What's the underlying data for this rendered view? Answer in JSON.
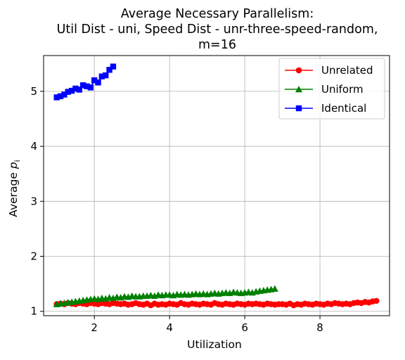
{
  "chart_data": {
    "type": "line",
    "title_lines": [
      "Average Necessary Parallelism:",
      "Util Dist - uni, Speed Dist - unr-three-speed-random,",
      "m=16"
    ],
    "xlabel": "Utilization",
    "ylabel_main": "Average ",
    "ylabel_var": "p",
    "ylabel_sub": "i",
    "xlim": [
      0.65,
      9.85
    ],
    "ylim": [
      0.92,
      5.65
    ],
    "xticks": [
      2,
      4,
      6,
      8
    ],
    "yticks": [
      1,
      2,
      3,
      4,
      5
    ],
    "grid": true,
    "legend_position": "top-right",
    "series": [
      {
        "name": "Unrelated",
        "color": "#ff0000",
        "marker": "circle",
        "points": [
          [
            1.0,
            1.13
          ],
          [
            1.1,
            1.14
          ],
          [
            1.2,
            1.13
          ],
          [
            1.3,
            1.15
          ],
          [
            1.4,
            1.14
          ],
          [
            1.5,
            1.13
          ],
          [
            1.6,
            1.15
          ],
          [
            1.7,
            1.14
          ],
          [
            1.8,
            1.13
          ],
          [
            1.9,
            1.15
          ],
          [
            2.0,
            1.14
          ],
          [
            2.1,
            1.13
          ],
          [
            2.2,
            1.15
          ],
          [
            2.3,
            1.14
          ],
          [
            2.4,
            1.13
          ],
          [
            2.5,
            1.15
          ],
          [
            2.6,
            1.14
          ],
          [
            2.7,
            1.13
          ],
          [
            2.8,
            1.14
          ],
          [
            2.9,
            1.12
          ],
          [
            3.0,
            1.13
          ],
          [
            3.1,
            1.15
          ],
          [
            3.2,
            1.13
          ],
          [
            3.3,
            1.12
          ],
          [
            3.4,
            1.14
          ],
          [
            3.5,
            1.11
          ],
          [
            3.6,
            1.14
          ],
          [
            3.7,
            1.12
          ],
          [
            3.8,
            1.13
          ],
          [
            3.9,
            1.12
          ],
          [
            4.0,
            1.14
          ],
          [
            4.1,
            1.13
          ],
          [
            4.2,
            1.12
          ],
          [
            4.3,
            1.15
          ],
          [
            4.4,
            1.13
          ],
          [
            4.5,
            1.12
          ],
          [
            4.6,
            1.14
          ],
          [
            4.7,
            1.13
          ],
          [
            4.8,
            1.12
          ],
          [
            4.9,
            1.14
          ],
          [
            5.0,
            1.13
          ],
          [
            5.1,
            1.12
          ],
          [
            5.2,
            1.15
          ],
          [
            5.3,
            1.13
          ],
          [
            5.4,
            1.12
          ],
          [
            5.5,
            1.14
          ],
          [
            5.6,
            1.13
          ],
          [
            5.7,
            1.12
          ],
          [
            5.8,
            1.14
          ],
          [
            5.9,
            1.13
          ],
          [
            6.0,
            1.12
          ],
          [
            6.1,
            1.14
          ],
          [
            6.2,
            1.13
          ],
          [
            6.3,
            1.14
          ],
          [
            6.4,
            1.13
          ],
          [
            6.5,
            1.12
          ],
          [
            6.6,
            1.14
          ],
          [
            6.7,
            1.13
          ],
          [
            6.8,
            1.12
          ],
          [
            6.9,
            1.13
          ],
          [
            7.0,
            1.13
          ],
          [
            7.1,
            1.12
          ],
          [
            7.2,
            1.14
          ],
          [
            7.3,
            1.11
          ],
          [
            7.4,
            1.13
          ],
          [
            7.5,
            1.12
          ],
          [
            7.6,
            1.14
          ],
          [
            7.7,
            1.13
          ],
          [
            7.8,
            1.12
          ],
          [
            7.9,
            1.14
          ],
          [
            8.0,
            1.13
          ],
          [
            8.1,
            1.12
          ],
          [
            8.2,
            1.14
          ],
          [
            8.3,
            1.13
          ],
          [
            8.4,
            1.15
          ],
          [
            8.5,
            1.14
          ],
          [
            8.6,
            1.13
          ],
          [
            8.7,
            1.14
          ],
          [
            8.8,
            1.13
          ],
          [
            8.9,
            1.15
          ],
          [
            9.0,
            1.16
          ],
          [
            9.1,
            1.15
          ],
          [
            9.2,
            1.17
          ],
          [
            9.3,
            1.16
          ],
          [
            9.4,
            1.18
          ],
          [
            9.5,
            1.19
          ]
        ]
      },
      {
        "name": "Uniform",
        "color": "#008000",
        "marker": "triangle",
        "points": [
          [
            1.0,
            1.13
          ],
          [
            1.1,
            1.14
          ],
          [
            1.2,
            1.15
          ],
          [
            1.3,
            1.16
          ],
          [
            1.4,
            1.17
          ],
          [
            1.5,
            1.18
          ],
          [
            1.6,
            1.19
          ],
          [
            1.7,
            1.2
          ],
          [
            1.8,
            1.21
          ],
          [
            1.9,
            1.22
          ],
          [
            2.0,
            1.23
          ],
          [
            2.1,
            1.22
          ],
          [
            2.2,
            1.24
          ],
          [
            2.3,
            1.23
          ],
          [
            2.4,
            1.25
          ],
          [
            2.5,
            1.24
          ],
          [
            2.6,
            1.26
          ],
          [
            2.7,
            1.25
          ],
          [
            2.8,
            1.27
          ],
          [
            2.9,
            1.26
          ],
          [
            3.0,
            1.28
          ],
          [
            3.1,
            1.27
          ],
          [
            3.2,
            1.27
          ],
          [
            3.3,
            1.28
          ],
          [
            3.4,
            1.28
          ],
          [
            3.5,
            1.29
          ],
          [
            3.6,
            1.28
          ],
          [
            3.7,
            1.3
          ],
          [
            3.8,
            1.29
          ],
          [
            3.9,
            1.3
          ],
          [
            4.0,
            1.3
          ],
          [
            4.1,
            1.29
          ],
          [
            4.2,
            1.31
          ],
          [
            4.3,
            1.3
          ],
          [
            4.4,
            1.31
          ],
          [
            4.5,
            1.3
          ],
          [
            4.6,
            1.31
          ],
          [
            4.7,
            1.32
          ],
          [
            4.8,
            1.31
          ],
          [
            4.9,
            1.32
          ],
          [
            5.0,
            1.31
          ],
          [
            5.1,
            1.32
          ],
          [
            5.2,
            1.33
          ],
          [
            5.3,
            1.32
          ],
          [
            5.4,
            1.33
          ],
          [
            5.5,
            1.34
          ],
          [
            5.6,
            1.33
          ],
          [
            5.7,
            1.35
          ],
          [
            5.8,
            1.34
          ],
          [
            5.9,
            1.33
          ],
          [
            6.0,
            1.34
          ],
          [
            6.1,
            1.35
          ],
          [
            6.2,
            1.34
          ],
          [
            6.3,
            1.36
          ],
          [
            6.4,
            1.37
          ],
          [
            6.5,
            1.38
          ],
          [
            6.6,
            1.39
          ],
          [
            6.7,
            1.4
          ],
          [
            6.8,
            1.41
          ]
        ]
      },
      {
        "name": "Identical",
        "color": "#0000ff",
        "marker": "square",
        "points": [
          [
            1.0,
            4.89
          ],
          [
            1.1,
            4.91
          ],
          [
            1.2,
            4.94
          ],
          [
            1.3,
            4.99
          ],
          [
            1.4,
            5.01
          ],
          [
            1.5,
            5.05
          ],
          [
            1.6,
            5.03
          ],
          [
            1.7,
            5.11
          ],
          [
            1.8,
            5.09
          ],
          [
            1.9,
            5.07
          ],
          [
            2.0,
            5.2
          ],
          [
            2.1,
            5.16
          ],
          [
            2.2,
            5.27
          ],
          [
            2.3,
            5.29
          ],
          [
            2.4,
            5.39
          ],
          [
            2.5,
            5.45
          ]
        ]
      }
    ]
  }
}
